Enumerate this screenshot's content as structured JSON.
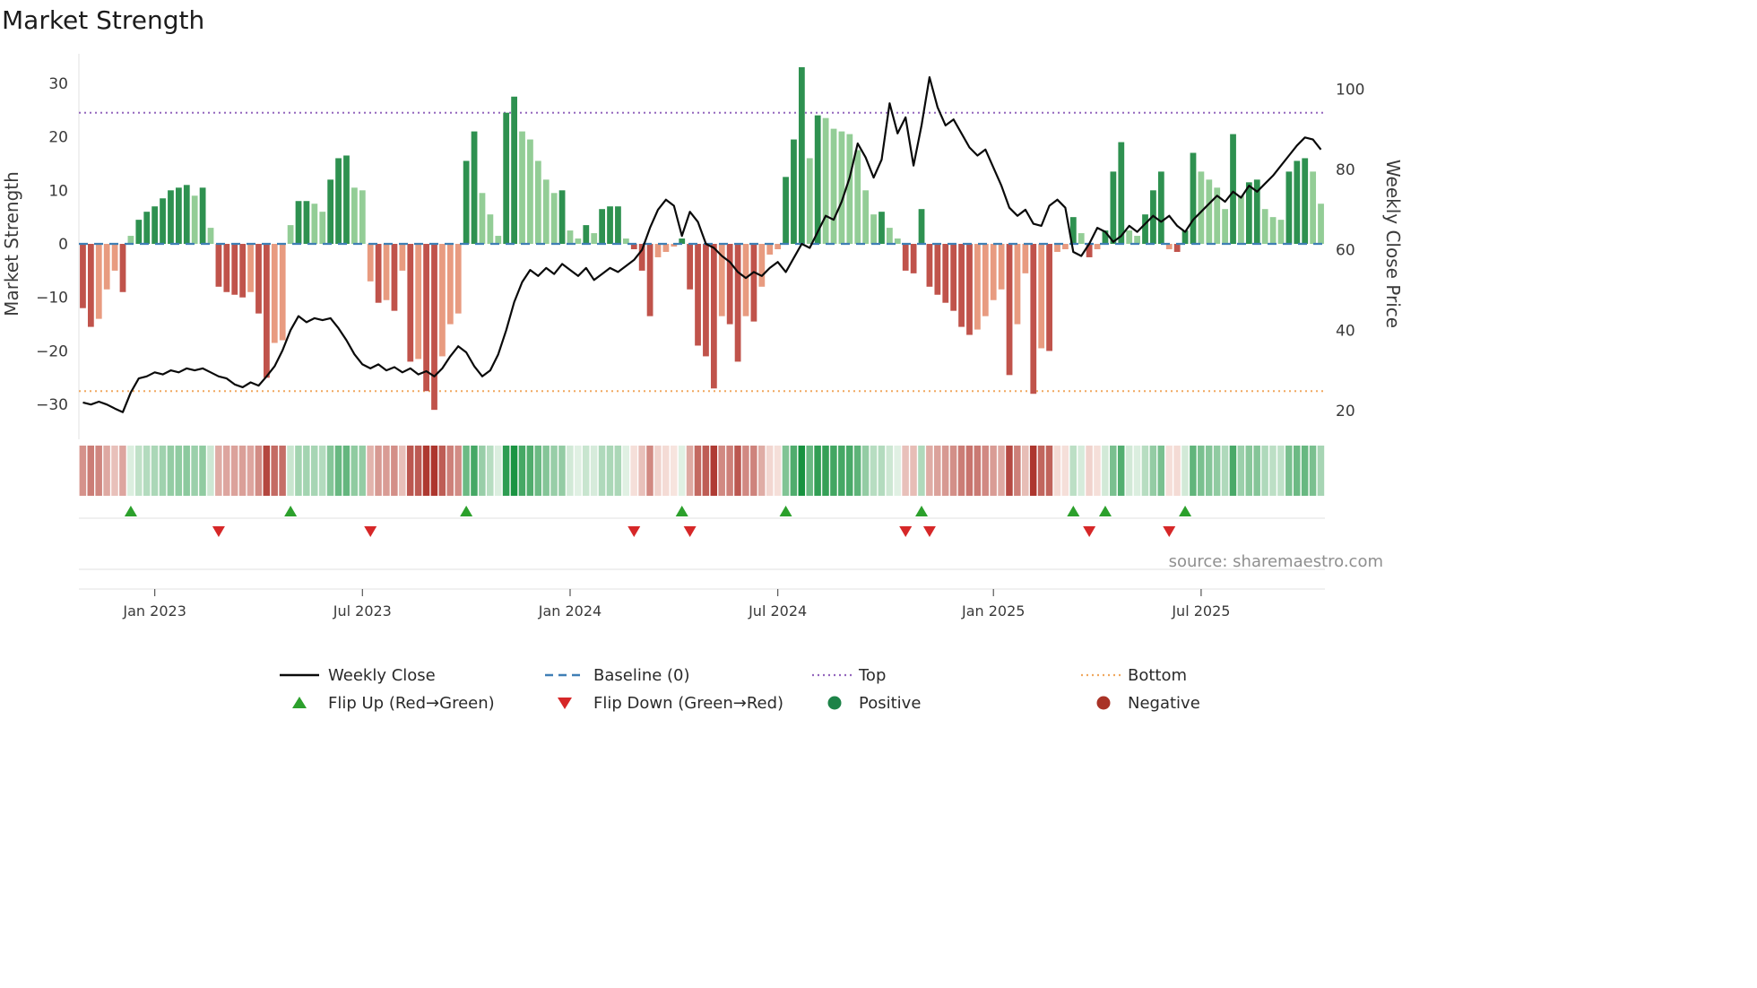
{
  "title": "Market Strength",
  "source": "source: sharemaestro.com",
  "axes": {
    "left_label": "Market Strength",
    "right_label": "Weekly Close Price"
  },
  "legend": {
    "position": "bottom center",
    "items": [
      {
        "label": "Weekly Close",
        "swatch": "solid-black-line"
      },
      {
        "label": "Baseline (0)",
        "swatch": "dashed-blue-line"
      },
      {
        "label": "Top",
        "swatch": "dotted-purple-line"
      },
      {
        "label": "Bottom",
        "swatch": "dotted-orange-line"
      },
      {
        "label": "Flip Up (Red→Green)",
        "swatch": "green-up-triangle"
      },
      {
        "label": "Flip Down (Green→Red)",
        "swatch": "red-down-triangle"
      },
      {
        "label": "Positive",
        "swatch": "green-circle"
      },
      {
        "label": "Negative",
        "swatch": "dark-red-circle"
      }
    ]
  },
  "chart_data": {
    "type": "bar",
    "subtype": "weekly strength bars + weekly close price line + heatmap strip + flip markers",
    "x_unit": "weeks",
    "n_weeks": 156,
    "x_ticks": [
      {
        "label": "Jan 2023",
        "week": 9
      },
      {
        "label": "Jul 2023",
        "week": 35
      },
      {
        "label": "Jan 2024",
        "week": 61
      },
      {
        "label": "Jul 2024",
        "week": 87
      },
      {
        "label": "Jan 2025",
        "week": 114
      },
      {
        "label": "Jul 2025",
        "week": 140
      }
    ],
    "ylim_left": [
      -36.5,
      35.5
    ],
    "left_ticks": [
      30,
      20,
      10,
      0,
      -10,
      -20,
      -30
    ],
    "right_ticks": [
      100,
      80,
      60,
      40,
      20
    ],
    "right_axis_alignment": "price 100 aligns with strength ~29, price 20 with strength ~-31",
    "baseline": 0,
    "top_threshold": 24.5,
    "bottom_threshold": -27.5,
    "grid": "off",
    "series": [
      {
        "name": "Market Strength",
        "type": "bar",
        "axis": "left",
        "values": [
          -12,
          -15.5,
          -14,
          -8.5,
          -5,
          -9,
          1.5,
          4.5,
          6,
          7,
          8.5,
          10,
          10.5,
          11,
          9,
          10.5,
          3,
          -8,
          -9,
          -9.5,
          -10,
          -9,
          -13,
          -25,
          -18.5,
          -18,
          3.5,
          8,
          8,
          7.5,
          6,
          12,
          16,
          16.5,
          10.5,
          10,
          -7,
          -11,
          -10.5,
          -12.5,
          -5,
          -22,
          -21.5,
          -27.5,
          -31,
          -21,
          -15,
          -13,
          15.5,
          21,
          9.5,
          5.5,
          1.5,
          24.5,
          27.5,
          21,
          19.5,
          15.5,
          12,
          9.5,
          10,
          2.5,
          1,
          3.5,
          2,
          6.5,
          7,
          7,
          1,
          -1,
          -5,
          -13.5,
          -2.5,
          -1.5,
          -0.5,
          1,
          -8.5,
          -19,
          -21,
          -27,
          -13.5,
          -15,
          -22,
          -13.5,
          -14.5,
          -8,
          -2,
          -1,
          12.5,
          19.5,
          33,
          16,
          24,
          23.5,
          21.5,
          21,
          20.5,
          17.5,
          10,
          5.5,
          6,
          3,
          1,
          -5,
          -5.5,
          6.5,
          -8,
          -9.5,
          -11,
          -12.5,
          -15.5,
          -17,
          -16,
          -13.5,
          -10.5,
          -8.5,
          -24.5,
          -15,
          -5.5,
          -28,
          -19.5,
          -20,
          -1.5,
          -1,
          5,
          2,
          -2.5,
          -1,
          2.5,
          13.5,
          19,
          2.5,
          1.5,
          5.5,
          10,
          13.5,
          -1,
          -1.5,
          2.5,
          17,
          13.5,
          12,
          10.5,
          6.5,
          20.5,
          9,
          11.5,
          12,
          6.5,
          5,
          4.5,
          13.5,
          15.5,
          16,
          13.5,
          7.5
        ]
      },
      {
        "name": "Weekly Close",
        "type": "line",
        "axis": "right",
        "values": [
          22,
          21.5,
          22.2,
          21.5,
          20.5,
          19.6,
          24.5,
          28,
          28.5,
          29.5,
          29,
          30,
          29.5,
          30.5,
          30,
          30.5,
          29.5,
          28.5,
          28,
          26.5,
          25.8,
          27,
          26.2,
          28.5,
          31,
          35,
          40,
          43.5,
          42,
          43,
          42.5,
          43,
          40.5,
          37.5,
          34,
          31.5,
          30.5,
          31.5,
          30,
          30.8,
          29.5,
          30.5,
          29,
          29.8,
          28.5,
          30.5,
          33.5,
          36,
          34.5,
          31,
          28.5,
          30,
          34,
          40,
          47,
          52,
          55,
          53.5,
          55.5,
          54,
          56.5,
          55,
          53.5,
          55.5,
          52.5,
          54,
          55.5,
          54.5,
          56,
          57.5,
          60,
          65.5,
          70,
          72.5,
          71,
          63.5,
          69.5,
          67,
          61.5,
          60.5,
          58.5,
          57,
          54.5,
          53,
          54.5,
          53.5,
          55.5,
          57,
          54.5,
          58,
          61.5,
          60.5,
          64.5,
          68.5,
          67.5,
          72,
          78,
          86.5,
          83,
          78,
          82.5,
          96.5,
          89,
          93,
          81,
          91,
          103,
          95.5,
          91,
          92.5,
          89,
          85.5,
          83.5,
          85,
          80.5,
          76,
          70.5,
          68.5,
          70,
          66.5,
          66,
          71,
          72.5,
          70.5,
          59.5,
          58.5,
          61.5,
          65.5,
          64.5,
          62,
          63.5,
          66,
          64.5,
          66.5,
          68.5,
          67,
          68.5,
          66,
          64.5,
          67.5,
          69.5,
          71.5,
          73.5,
          72,
          74.5,
          73,
          76,
          74.5,
          76.5,
          78.5,
          81,
          83.5,
          86,
          88,
          87.5,
          85
        ]
      }
    ],
    "flip_up_weeks": [
      6,
      26,
      48,
      75,
      88,
      105,
      124,
      128,
      138
    ],
    "flip_down_weeks": [
      17,
      36,
      69,
      76,
      103,
      106,
      126,
      136
    ],
    "heatmap_strip": "red-to-green intensity derived from Market Strength values",
    "colors": {
      "positive_strong": "#2e9150",
      "positive_weak": "#93cd96",
      "negative_strong": "#c0534b",
      "negative_weak": "#e89b80",
      "heat_pos_dark": "#17923f",
      "heat_pos_light": "#edf6ed",
      "heat_neg_dark": "#ad362e",
      "heat_neg_light": "#faeae4",
      "line": "#0a0a0a",
      "baseline": "#3f7fb5",
      "top": "#9467bd",
      "bottom": "#f0a860",
      "flip_up": "#2ca02c",
      "flip_down": "#d62728",
      "positive_dot": "#1d8348",
      "negative_dot": "#a93226"
    }
  }
}
